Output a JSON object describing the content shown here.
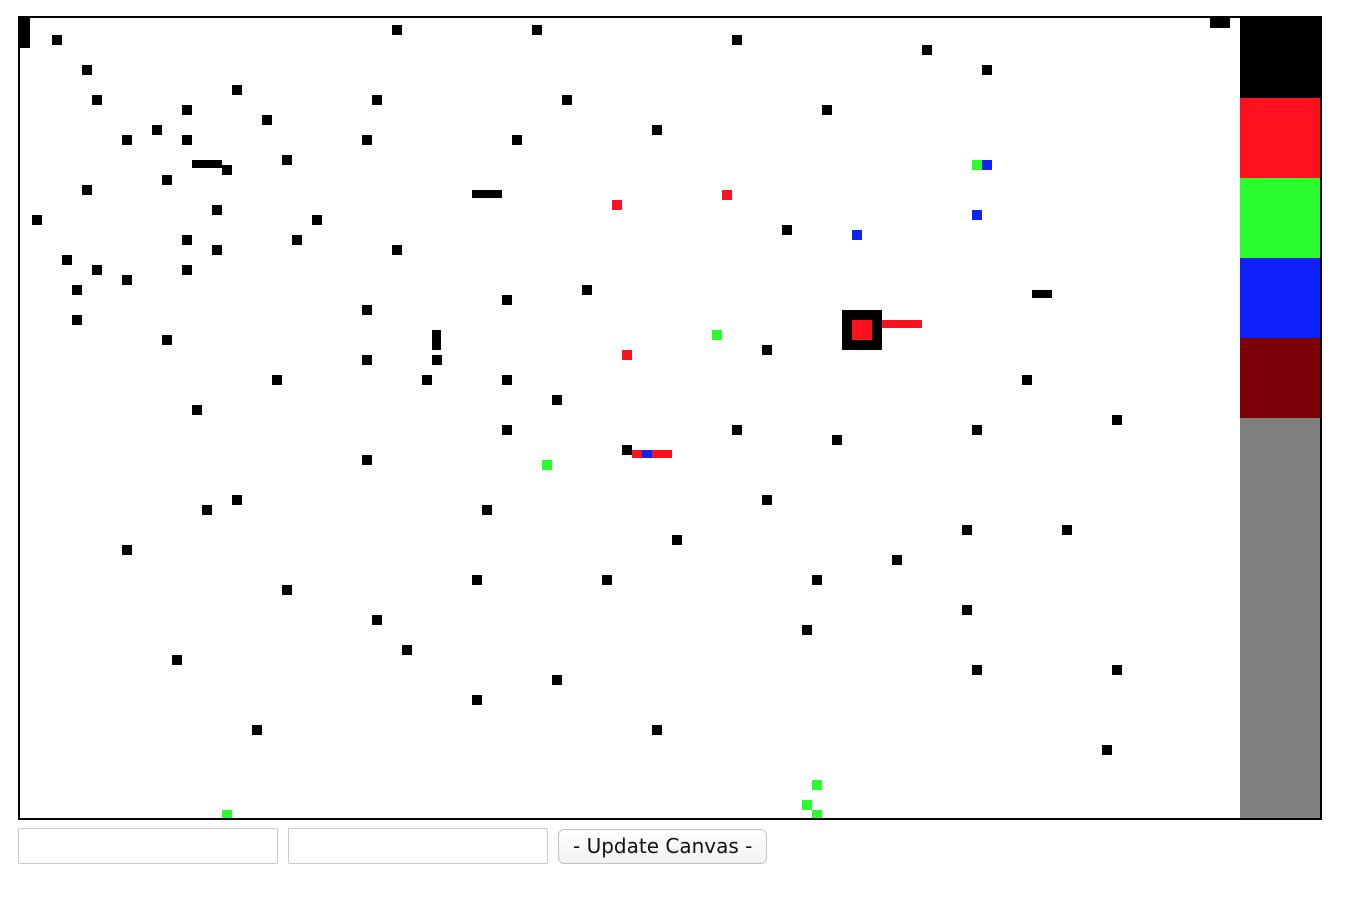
{
  "canvas": {
    "cell_size_px": 10,
    "grid_cols": 122,
    "grid_rows": 80,
    "colors": {
      "black": "#000000",
      "red": "#fe101e",
      "green": "#2afe2e",
      "blue": "#0f22fe",
      "dark_red": "#7c0007",
      "gray": "#808080"
    },
    "selected_color": "#fe101e"
  },
  "palette": [
    {
      "name": "black",
      "color": "#000000"
    },
    {
      "name": "red",
      "color": "#fe101e"
    },
    {
      "name": "green",
      "color": "#2afe2e"
    },
    {
      "name": "blue",
      "color": "#0f22fe"
    },
    {
      "name": "dark-red",
      "color": "#7c0007"
    }
  ],
  "palette_filler_color": "#808080",
  "inputs": {
    "first": {
      "value": "",
      "placeholder": ""
    },
    "second": {
      "value": "",
      "placeholder": ""
    }
  },
  "button": {
    "label": "- Update Canvas -"
  }
}
